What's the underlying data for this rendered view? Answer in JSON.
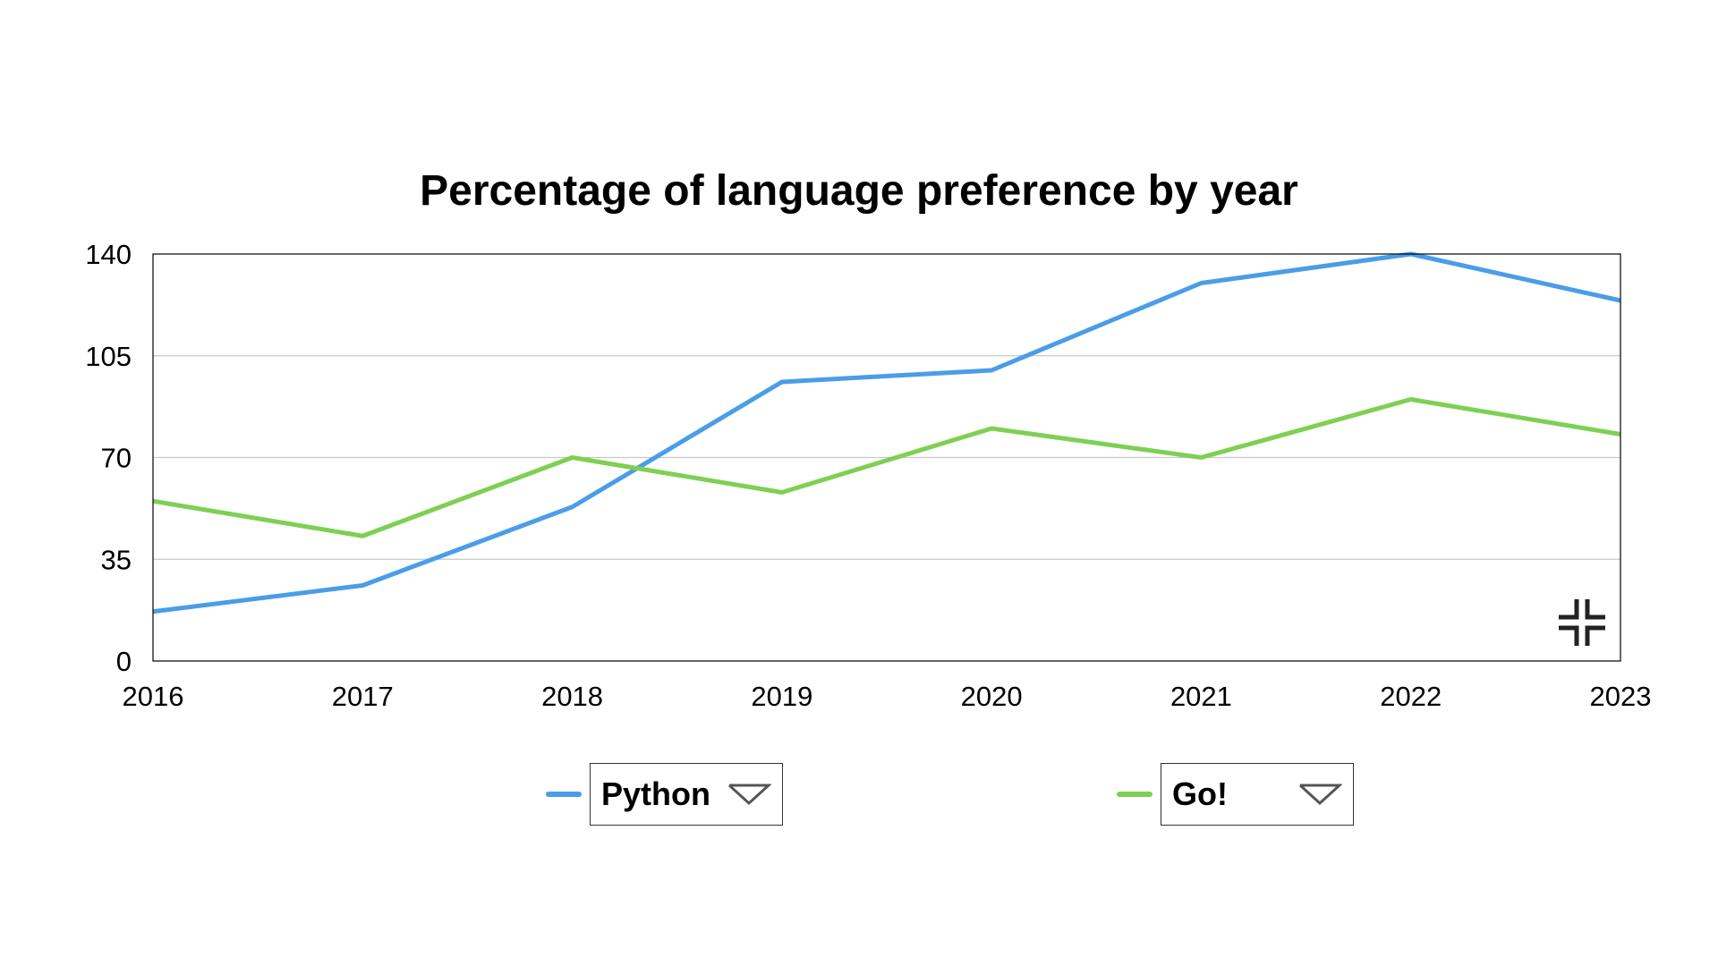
{
  "chart_data": {
    "type": "line",
    "title": "Percentage of language preference by year",
    "xlabel": "",
    "ylabel": "",
    "x": [
      2016,
      2017,
      2018,
      2019,
      2020,
      2021,
      2022,
      2023
    ],
    "x_tick_labels": [
      "2016",
      "2017",
      "2018",
      "2019",
      "2020",
      "2021",
      "2022",
      "2023"
    ],
    "y_ticks": [
      0,
      35,
      70,
      105,
      140
    ],
    "y_tick_labels": [
      "0",
      "35",
      "70",
      "105",
      "140"
    ],
    "ylim": [
      0,
      140
    ],
    "grid": true,
    "legend_position": "bottom",
    "series": [
      {
        "name": "Python",
        "color": "#4a9de8",
        "values": [
          17,
          26,
          53,
          96,
          100,
          130,
          140,
          124
        ]
      },
      {
        "name": "Go!",
        "color": "#7ed053",
        "values": [
          55,
          43,
          70,
          58,
          80,
          70,
          90,
          78
        ]
      }
    ]
  },
  "legend": {
    "items": [
      {
        "label": "Python",
        "color": "#4a9de8",
        "icon": "chevron-down-icon"
      },
      {
        "label": "Go!",
        "color": "#7ed053",
        "icon": "chevron-down-icon"
      }
    ]
  },
  "controls": {
    "collapse_icon": "collapse-icon"
  }
}
